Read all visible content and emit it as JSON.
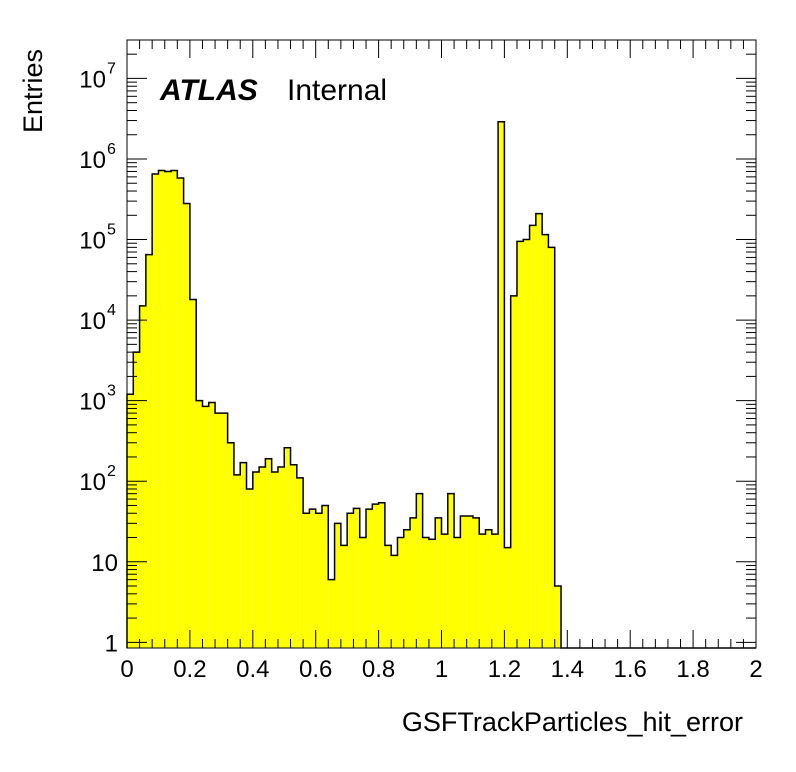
{
  "chart_data": {
    "type": "bar",
    "histogram": true,
    "xlabel": "GSFTrackParticles_hit_error",
    "ylabel": "Entries",
    "xlim": [
      0,
      2
    ],
    "ylim": [
      0.85,
      30000000
    ],
    "yscale": "log",
    "fill_color": "#ffff00",
    "line_color": "#000000",
    "label_main": "ATLAS",
    "label_sub": "Internal",
    "x_ticks": [
      {
        "v": 0,
        "label": "0"
      },
      {
        "v": 0.2,
        "label": "0.2"
      },
      {
        "v": 0.4,
        "label": "0.4"
      },
      {
        "v": 0.6,
        "label": "0.6"
      },
      {
        "v": 0.8,
        "label": "0.8"
      },
      {
        "v": 1,
        "label": "1"
      },
      {
        "v": 1.2,
        "label": "1.2"
      },
      {
        "v": 1.4,
        "label": "1.4"
      },
      {
        "v": 1.6,
        "label": "1.6"
      },
      {
        "v": 1.8,
        "label": "1.8"
      },
      {
        "v": 2,
        "label": "2"
      }
    ],
    "y_ticks": [
      {
        "v": 1,
        "base": "1",
        "exp": ""
      },
      {
        "v": 10,
        "base": "10",
        "exp": ""
      },
      {
        "v": 100,
        "base": "10",
        "exp": "2"
      },
      {
        "v": 1000,
        "base": "10",
        "exp": "3"
      },
      {
        "v": 10000,
        "base": "10",
        "exp": "4"
      },
      {
        "v": 100000,
        "base": "10",
        "exp": "5"
      },
      {
        "v": 1000000,
        "base": "10",
        "exp": "6"
      },
      {
        "v": 10000000,
        "base": "10",
        "exp": "7"
      }
    ],
    "bin_width": 0.02,
    "values": [
      1200,
      4000,
      15000,
      65000,
      650000,
      720000,
      700000,
      720000,
      580000,
      280000,
      18000,
      1000,
      850,
      950,
      700,
      700,
      300,
      120,
      170,
      80,
      130,
      150,
      190,
      130,
      150,
      260,
      160,
      110,
      40,
      45,
      40,
      50,
      6,
      30,
      16,
      40,
      46,
      20,
      45,
      52,
      54,
      16,
      12,
      20,
      25,
      35,
      70,
      20,
      19,
      35,
      22,
      70,
      20,
      37,
      37,
      35,
      22,
      25,
      22,
      2900000,
      15,
      20000,
      95000,
      100000,
      150000,
      210000,
      115000,
      80000,
      5,
      0,
      0,
      0,
      0,
      0,
      0,
      0,
      0,
      0,
      0,
      0,
      0,
      0,
      0,
      0,
      0,
      0,
      0,
      0,
      0,
      0,
      0,
      0,
      0,
      0,
      0,
      0,
      0,
      0,
      0,
      0
    ]
  }
}
